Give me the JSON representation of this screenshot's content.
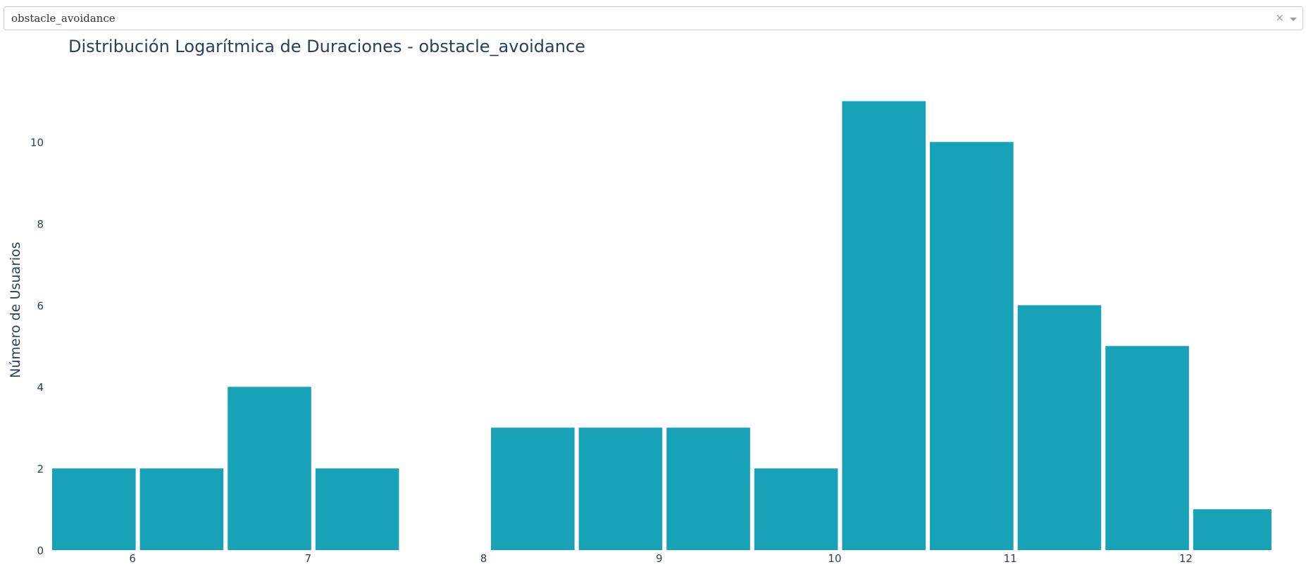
{
  "dropdown": {
    "selected": "obstacle_avoidance",
    "clear_icon": "×",
    "arrow_icon": "chevron-down-icon"
  },
  "chart_data": {
    "type": "bar",
    "title": "Distribución Logarítmica de Duraciones - obstacle_avoidance",
    "xlabel": "",
    "ylabel": "Número de Usuarios",
    "bar_color": "#17a2b8",
    "text_color": "#2a3f5f",
    "grid": false,
    "xlim": [
      5.53,
      12.5
    ],
    "ylim": [
      0,
      11.58
    ],
    "xticks": [
      6,
      7,
      8,
      9,
      10,
      11,
      12
    ],
    "yticks": [
      0,
      2,
      4,
      6,
      8,
      10
    ],
    "bins": [
      {
        "x0": 5.53,
        "x1": 6.03,
        "value": 2
      },
      {
        "x0": 6.03,
        "x1": 6.53,
        "value": 2
      },
      {
        "x0": 6.53,
        "x1": 7.03,
        "value": 4
      },
      {
        "x0": 7.03,
        "x1": 7.53,
        "value": 2
      },
      {
        "x0": 7.53,
        "x1": 8.03,
        "value": 0
      },
      {
        "x0": 8.03,
        "x1": 8.53,
        "value": 3
      },
      {
        "x0": 8.53,
        "x1": 9.03,
        "value": 3
      },
      {
        "x0": 9.03,
        "x1": 9.53,
        "value": 3
      },
      {
        "x0": 9.53,
        "x1": 10.03,
        "value": 2
      },
      {
        "x0": 10.03,
        "x1": 10.53,
        "value": 11
      },
      {
        "x0": 10.53,
        "x1": 11.03,
        "value": 10
      },
      {
        "x0": 11.03,
        "x1": 11.53,
        "value": 6
      },
      {
        "x0": 11.53,
        "x1": 12.03,
        "value": 5
      },
      {
        "x0": 12.03,
        "x1": 12.5,
        "value": 1
      }
    ]
  }
}
